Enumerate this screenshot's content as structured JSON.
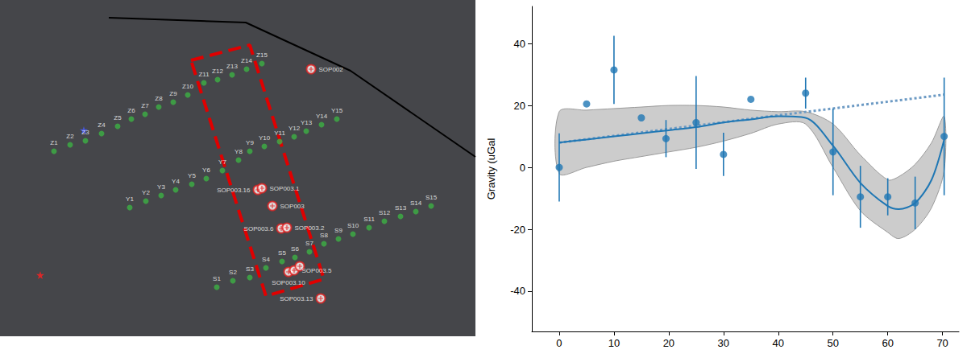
{
  "chart_data": [
    {
      "type": "scatter",
      "tick_labels": false,
      "grid": false,
      "xlim": [
        0,
        590
      ],
      "ylim": [
        0,
        418
      ],
      "series": [
        {
          "color": "#3cb043",
          "marker": "circle",
          "points": [
            {
              "label": "Z1",
              "x": 67,
              "y": 230
            },
            {
              "label": "Z2",
              "x": 87,
              "y": 238
            },
            {
              "label": "Z3",
              "x": 106,
              "y": 243
            },
            {
              "label": "Z4",
              "x": 126,
              "y": 252
            },
            {
              "label": "Z5",
              "x": 146,
              "y": 261
            },
            {
              "label": "Z6",
              "x": 163,
              "y": 270
            },
            {
              "label": "Z7",
              "x": 180,
              "y": 276
            },
            {
              "label": "Z8",
              "x": 197,
              "y": 285
            },
            {
              "label": "Z9",
              "x": 215,
              "y": 291
            },
            {
              "label": "Z10",
              "x": 233,
              "y": 300
            },
            {
              "label": "Z11",
              "x": 253,
              "y": 315
            },
            {
              "label": "Z12",
              "x": 270,
              "y": 319
            },
            {
              "label": "Z13",
              "x": 288,
              "y": 325
            },
            {
              "label": "Z14",
              "x": 306,
              "y": 332
            },
            {
              "label": "Z15",
              "x": 325,
              "y": 339
            },
            {
              "label": "Y1",
              "x": 161,
              "y": 160
            },
            {
              "label": "Y2",
              "x": 181,
              "y": 168
            },
            {
              "label": "Y3",
              "x": 200,
              "y": 175
            },
            {
              "label": "Y4",
              "x": 218,
              "y": 182
            },
            {
              "label": "Y5",
              "x": 238,
              "y": 189
            },
            {
              "label": "Y6",
              "x": 256,
              "y": 196
            },
            {
              "label": "Y7",
              "x": 276,
              "y": 206
            },
            {
              "label": "Y8",
              "x": 296,
              "y": 219
            },
            {
              "label": "Y9",
              "x": 310,
              "y": 230
            },
            {
              "label": "Y10",
              "x": 328,
              "y": 236
            },
            {
              "label": "Y11",
              "x": 347,
              "y": 242
            },
            {
              "label": "Y12",
              "x": 365,
              "y": 248
            },
            {
              "label": "Y13",
              "x": 380,
              "y": 255
            },
            {
              "label": "Y14",
              "x": 399,
              "y": 263
            },
            {
              "label": "Y15",
              "x": 418,
              "y": 270
            },
            {
              "label": "S1",
              "x": 269,
              "y": 61
            },
            {
              "label": "S2",
              "x": 289,
              "y": 69
            },
            {
              "label": "S3",
              "x": 310,
              "y": 73
            },
            {
              "label": "S4",
              "x": 330,
              "y": 85
            },
            {
              "label": "S5",
              "x": 350,
              "y": 93
            },
            {
              "label": "S6",
              "x": 366,
              "y": 98
            },
            {
              "label": "S7",
              "x": 384,
              "y": 105
            },
            {
              "label": "S8",
              "x": 402,
              "y": 115
            },
            {
              "label": "S9",
              "x": 420,
              "y": 121
            },
            {
              "label": "S10",
              "x": 438,
              "y": 127
            },
            {
              "label": "S11",
              "x": 458,
              "y": 135
            },
            {
              "label": "S12",
              "x": 477,
              "y": 143
            },
            {
              "label": "S13",
              "x": 497,
              "y": 149
            },
            {
              "label": "S14",
              "x": 516,
              "y": 155
            },
            {
              "label": "S15",
              "x": 535,
              "y": 162
            }
          ]
        },
        {
          "color": "#e02020",
          "marker": "cross_circle",
          "points": [
            {
              "label": "SOP002",
              "x": 386,
              "y": 332
            },
            {
              "label": "SOP003.16",
              "x": 320,
              "y": 182
            },
            {
              "label": "SOP003.1",
              "x": 325,
              "y": 184
            },
            {
              "label": "SOP003",
              "x": 338,
              "y": 162
            },
            {
              "label": "SOP003.6",
              "x": 349,
              "y": 134
            },
            {
              "label": "SOP003.2",
              "x": 356,
              "y": 135
            },
            {
              "label": "SOP003.10",
              "x": 358,
              "y": 80
            },
            {
              "label": "SOP003.5",
              "x": 365,
              "y": 82
            },
            {
              "x": 372,
              "y": 87
            },
            {
              "label": "SOP003.13",
              "x": 398,
              "y": 47
            }
          ]
        },
        {
          "color": "#4a5cff",
          "marker": "star",
          "points": [
            {
              "x": 104,
              "y": 256
            }
          ]
        },
        {
          "color": "#ff2020",
          "marker": "star",
          "points": [
            {
              "x": 50,
              "y": 76
            }
          ]
        }
      ],
      "outline": {
        "color": "#e00000",
        "line_style": "dashed",
        "x": [
          237,
          310,
          402,
          330,
          237
        ],
        "y": [
          343,
          362,
          71,
          50,
          343
        ]
      },
      "boundary": {
        "color": "#000000",
        "line_style": "solid",
        "x": [
          135,
          305,
          435,
          590
        ],
        "y": [
          396,
          390,
          330,
          223
        ]
      }
    },
    {
      "type": "scatter",
      "grid": false,
      "y_label": "Gravity (uGal",
      "xlim": [
        -5,
        73
      ],
      "ylim": [
        -53,
        52
      ],
      "xticks": [
        0,
        10,
        20,
        30,
        40,
        50,
        60,
        70
      ],
      "yticks": [
        -40,
        -20,
        0,
        20,
        40
      ],
      "series": [
        {
          "type": "band",
          "color": "#cccccc",
          "x": [
            0,
            5,
            10,
            15,
            20,
            25,
            30,
            35,
            40,
            45,
            50,
            55,
            60,
            62,
            65,
            68,
            70.3
          ],
          "upper": [
            18,
            18.5,
            19,
            19.5,
            20,
            20,
            19.5,
            18.5,
            18,
            18,
            14,
            4,
            -4,
            -3,
            1,
            8,
            16.5
          ],
          "lower": [
            -2,
            0,
            2,
            3.5,
            5,
            6.5,
            8.5,
            11,
            14,
            14,
            0,
            -14,
            -21,
            -23,
            -20,
            -13,
            -1
          ]
        },
        {
          "type": "line",
          "color": "#6c9ac4",
          "line_style": "dotted",
          "x": [
            0,
            70.3
          ],
          "values": [
            8,
            23.5
          ]
        },
        {
          "type": "line",
          "color": "#1f77b4",
          "line_style": "solid",
          "x": [
            0,
            5,
            10,
            15,
            20,
            25,
            30,
            35,
            40,
            45,
            50,
            55,
            60,
            62,
            65,
            68,
            70.3
          ],
          "values": [
            8,
            9,
            10,
            11,
            12,
            13,
            14.5,
            15.5,
            16.5,
            16,
            7,
            -5,
            -12.5,
            -13.5,
            -11.5,
            -4,
            9
          ]
        },
        {
          "type": "scatter",
          "color": "#1f77b4",
          "marker": "circle",
          "x": [
            0,
            5,
            10,
            15,
            19.5,
            25,
            30,
            35,
            45,
            50,
            55,
            60,
            65,
            70.3
          ],
          "values": [
            0,
            20.5,
            31.5,
            16,
            9.3,
            14.5,
            4.2,
            22,
            24,
            5,
            -9.5,
            -9.5,
            -11.5,
            10
          ],
          "errors": [
            11,
            null,
            11,
            null,
            6,
            15,
            7,
            null,
            5,
            14,
            10,
            6,
            8.5,
            19
          ]
        }
      ]
    }
  ]
}
